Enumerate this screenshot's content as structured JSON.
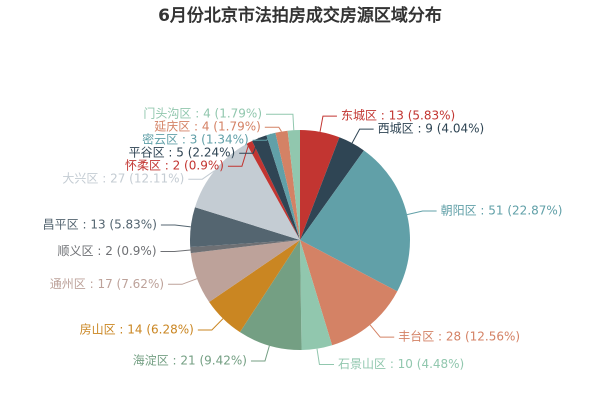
{
  "chart_data": {
    "type": "pie",
    "title": "6月份北京市法拍房成交房源区域分布",
    "values": [
      13,
      9,
      51,
      28,
      10,
      21,
      14,
      17,
      2,
      13,
      27,
      2,
      5,
      3,
      4,
      4
    ],
    "value_labels": [
      "东城区 : 13 (5.83%)",
      "西城区 : 9 (4.04%)",
      "朝阳区 : 51 (22.87%)",
      "丰台区 : 28 (12.56%)",
      "石景山区 : 10 (4.48%)",
      "海淀区 : 21 (9.42%)",
      "房山区 : 14 (6.28%)",
      "通州区 : 17 (7.62%)",
      "顺义区 : 2 (0.9%)",
      "昌平区 : 13 (5.83%)",
      "大兴区 : 27 (12.11%)",
      "怀柔区 : 2 (0.9%)",
      "平谷区 : 5 (2.24%)",
      "密云区 : 3 (1.34%)",
      "延庆区 : 4 (1.79%)",
      "门头沟区 : 4 (1.79%)"
    ],
    "colors": [
      "#c23531",
      "#2f4554",
      "#61a0a8",
      "#d48265",
      "#91c7ae",
      "#749f83",
      "#ca8622",
      "#bda29a",
      "#6e7074",
      "#546570",
      "#c4ccd3",
      "#c23531",
      "#2f4554",
      "#61a0a8",
      "#d48265",
      "#91c7ae"
    ]
  }
}
